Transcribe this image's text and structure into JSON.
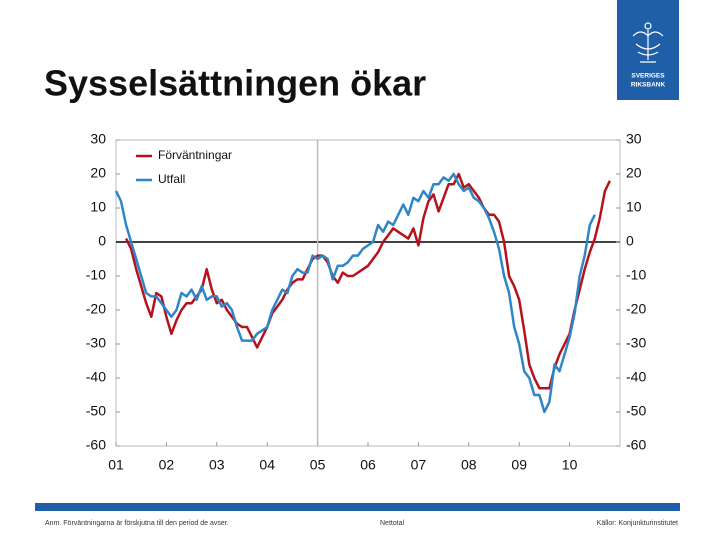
{
  "header": {
    "title": "Sysselsättningen ökar",
    "logo": [
      "SVERIGES",
      "RIKSBANK"
    ]
  },
  "footer": {
    "note": "Anm. Förväntningarna är förskjutna till den period de avser.",
    "unit": "Nettotal",
    "source": "Källor: Konjunkturinstitutet"
  },
  "chart_data": {
    "type": "line",
    "xlim": [
      2001,
      2011
    ],
    "xticks": [
      {
        "value": 2001,
        "label": "01"
      },
      {
        "value": 2002,
        "label": "02"
      },
      {
        "value": 2003,
        "label": "03"
      },
      {
        "value": 2004,
        "label": "04"
      },
      {
        "value": 2005,
        "label": "05"
      },
      {
        "value": 2006,
        "label": "06"
      },
      {
        "value": 2007,
        "label": "07"
      },
      {
        "value": 2008,
        "label": "08"
      },
      {
        "value": 2009,
        "label": "09"
      },
      {
        "value": 2010,
        "label": "10"
      }
    ],
    "ylim": [
      -60,
      30
    ],
    "yticks": [
      -60,
      -50,
      -40,
      -30,
      -20,
      -10,
      0,
      10,
      20,
      30
    ],
    "y2lim": [
      -60,
      30
    ],
    "y2ticks": [
      -60,
      -50,
      -40,
      -30,
      -20,
      -10,
      0,
      10,
      20,
      30
    ],
    "vline": 2005,
    "legend": "upper-left",
    "series": [
      {
        "name": "Förväntningar",
        "color": "#b5121b",
        "x": [
          2001.2,
          2001.3,
          2001.4,
          2001.5,
          2001.6,
          2001.7,
          2001.8,
          2001.9,
          2002,
          2002.1,
          2002.2,
          2002.3,
          2002.4,
          2002.5,
          2002.6,
          2002.7,
          2002.8,
          2002.9,
          2003,
          2003.1,
          2003.2,
          2003.3,
          2003.4,
          2003.5,
          2003.6,
          2003.7,
          2003.8,
          2003.9,
          2004,
          2004.1,
          2004.2,
          2004.3,
          2004.4,
          2004.5,
          2004.6,
          2004.7,
          2004.8,
          2004.9,
          2005,
          2005.1,
          2005.2,
          2005.3,
          2005.4,
          2005.5,
          2005.6,
          2005.7,
          2005.8,
          2005.9,
          2006,
          2006.1,
          2006.2,
          2006.3,
          2006.4,
          2006.5,
          2006.6,
          2006.7,
          2006.8,
          2006.9,
          2007,
          2007.1,
          2007.2,
          2007.3,
          2007.4,
          2007.5,
          2007.6,
          2007.7,
          2007.8,
          2007.9,
          2008,
          2008.1,
          2008.2,
          2008.3,
          2008.4,
          2008.5,
          2008.6,
          2008.7,
          2008.8,
          2008.9,
          2009,
          2009.1,
          2009.2,
          2009.3,
          2009.4,
          2009.5,
          2009.6,
          2009.7,
          2009.8,
          2009.9,
          2010,
          2010.1,
          2010.2,
          2010.3,
          2010.4,
          2010.5,
          2010.6,
          2010.7,
          2010.8
        ],
        "values": [
          1,
          -2,
          -8,
          -13,
          -18,
          -22,
          -15,
          -16,
          -22,
          -27,
          -23,
          -20,
          -18,
          -18,
          -16,
          -14,
          -8,
          -14,
          -18,
          -17,
          -20,
          -22,
          -24,
          -25,
          -25,
          -28,
          -31,
          -28,
          -25,
          -21,
          -19,
          -17,
          -14,
          -12,
          -11,
          -11,
          -8,
          -5,
          -4,
          -4,
          -6,
          -10,
          -12,
          -9,
          -10,
          -10,
          -9,
          -8,
          -7,
          -5,
          -3,
          0,
          2,
          4,
          3,
          2,
          1,
          4,
          -1,
          7,
          12,
          14,
          9,
          13,
          17,
          17,
          20,
          16,
          17,
          15,
          13,
          10,
          8,
          8,
          6,
          0,
          -10,
          -13,
          -17,
          -26,
          -36,
          -40,
          -43,
          -43,
          -43,
          -37,
          -33,
          -30,
          -27,
          -20,
          -14,
          -8,
          -3,
          1,
          7,
          15,
          18
        ]
      },
      {
        "name": "Utfall",
        "color": "#2e86c8",
        "x": [
          2001,
          2001.1,
          2001.2,
          2001.3,
          2001.4,
          2001.5,
          2001.6,
          2001.7,
          2001.8,
          2001.9,
          2002,
          2002.1,
          2002.2,
          2002.3,
          2002.4,
          2002.5,
          2002.6,
          2002.7,
          2002.8,
          2002.9,
          2003,
          2003.1,
          2003.2,
          2003.3,
          2003.4,
          2003.5,
          2003.6,
          2003.7,
          2003.8,
          2003.9,
          2004,
          2004.1,
          2004.2,
          2004.3,
          2004.4,
          2004.5,
          2004.6,
          2004.7,
          2004.8,
          2004.9,
          2005,
          2005.1,
          2005.2,
          2005.3,
          2005.4,
          2005.5,
          2005.6,
          2005.7,
          2005.8,
          2005.9,
          2006,
          2006.1,
          2006.2,
          2006.3,
          2006.4,
          2006.5,
          2006.6,
          2006.7,
          2006.8,
          2006.9,
          2007,
          2007.1,
          2007.2,
          2007.3,
          2007.4,
          2007.5,
          2007.6,
          2007.7,
          2007.8,
          2007.9,
          2008,
          2008.1,
          2008.2,
          2008.3,
          2008.4,
          2008.5,
          2008.6,
          2008.7,
          2008.8,
          2008.9,
          2009,
          2009.1,
          2009.2,
          2009.3,
          2009.4,
          2009.5,
          2009.6,
          2009.7,
          2009.8,
          2009.9,
          2010,
          2010.1,
          2010.2,
          2010.3,
          2010.4,
          2010.5
        ],
        "values": [
          15,
          12,
          5,
          0,
          -5,
          -10,
          -15,
          -16,
          -16,
          -18,
          -20,
          -22,
          -20,
          -15,
          -16,
          -14,
          -17,
          -13,
          -17,
          -16,
          -16,
          -19,
          -18,
          -20,
          -25,
          -29,
          -29,
          -29,
          -27,
          -26,
          -25,
          -20,
          -17,
          -14,
          -15,
          -10,
          -8,
          -9,
          -9,
          -4,
          -5,
          -4,
          -5,
          -11,
          -7,
          -7,
          -6,
          -4,
          -4,
          -2,
          -1,
          0,
          5,
          3,
          6,
          5,
          8,
          11,
          8,
          13,
          12,
          15,
          13,
          17,
          17,
          19,
          18,
          20,
          17,
          15,
          16,
          13,
          12,
          10,
          7,
          3,
          -2,
          -10,
          -15,
          -25,
          -30,
          -38,
          -40,
          -45,
          -45,
          -50,
          -47,
          -36,
          -38,
          -33,
          -28,
          -21,
          -10,
          -4,
          5,
          8
        ]
      }
    ]
  }
}
